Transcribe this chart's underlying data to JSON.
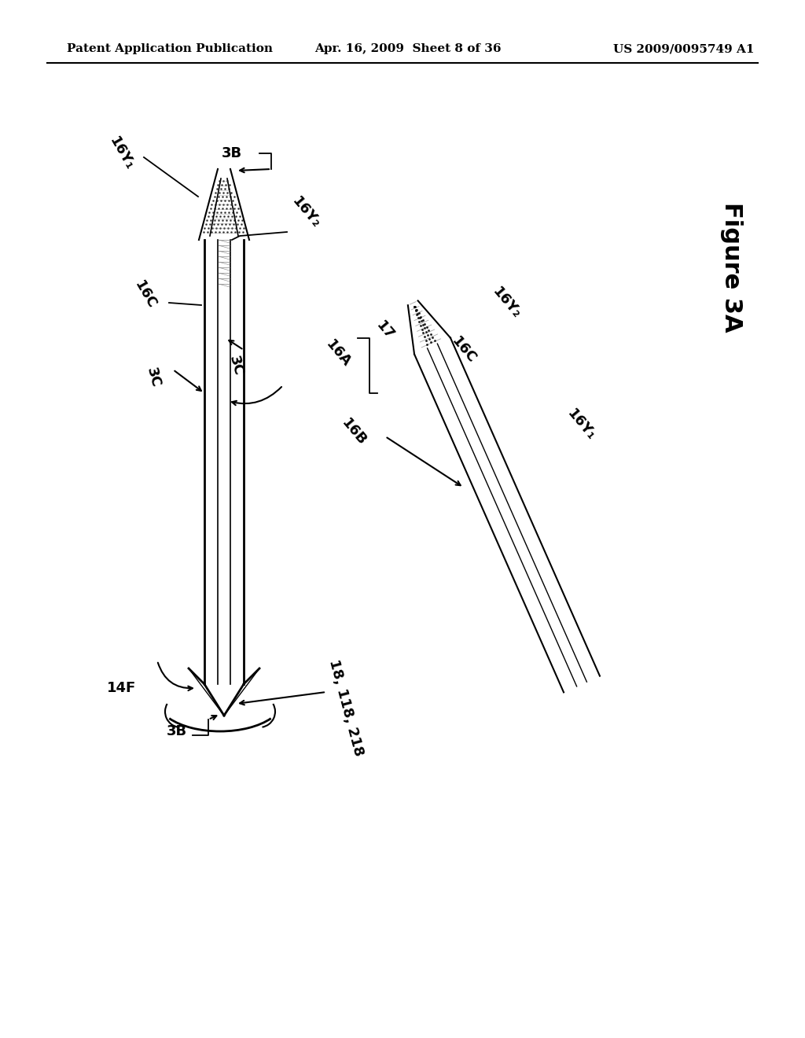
{
  "bg_color": "#ffffff",
  "header_left": "Patent Application Publication",
  "header_center": "Apr. 16, 2009  Sheet 8 of 36",
  "header_right": "US 2009/0095749 A1",
  "figure_label": "Figure 3A",
  "labels": {
    "16Y1_top": "16Y₁",
    "3B_top": "3B",
    "16Y2_top": "16Y₂",
    "16C_left": "16C",
    "3C_left": "3C",
    "3C_right": "3C",
    "16A": "16A",
    "17": "17",
    "16B": "16B",
    "16C_right": "16C",
    "16Y2_right": "16Y₂",
    "16Y1_right": "16Y₁",
    "14F": "14F",
    "3B_bottom": "3B",
    "18_118_218": "18, 118, 218"
  }
}
